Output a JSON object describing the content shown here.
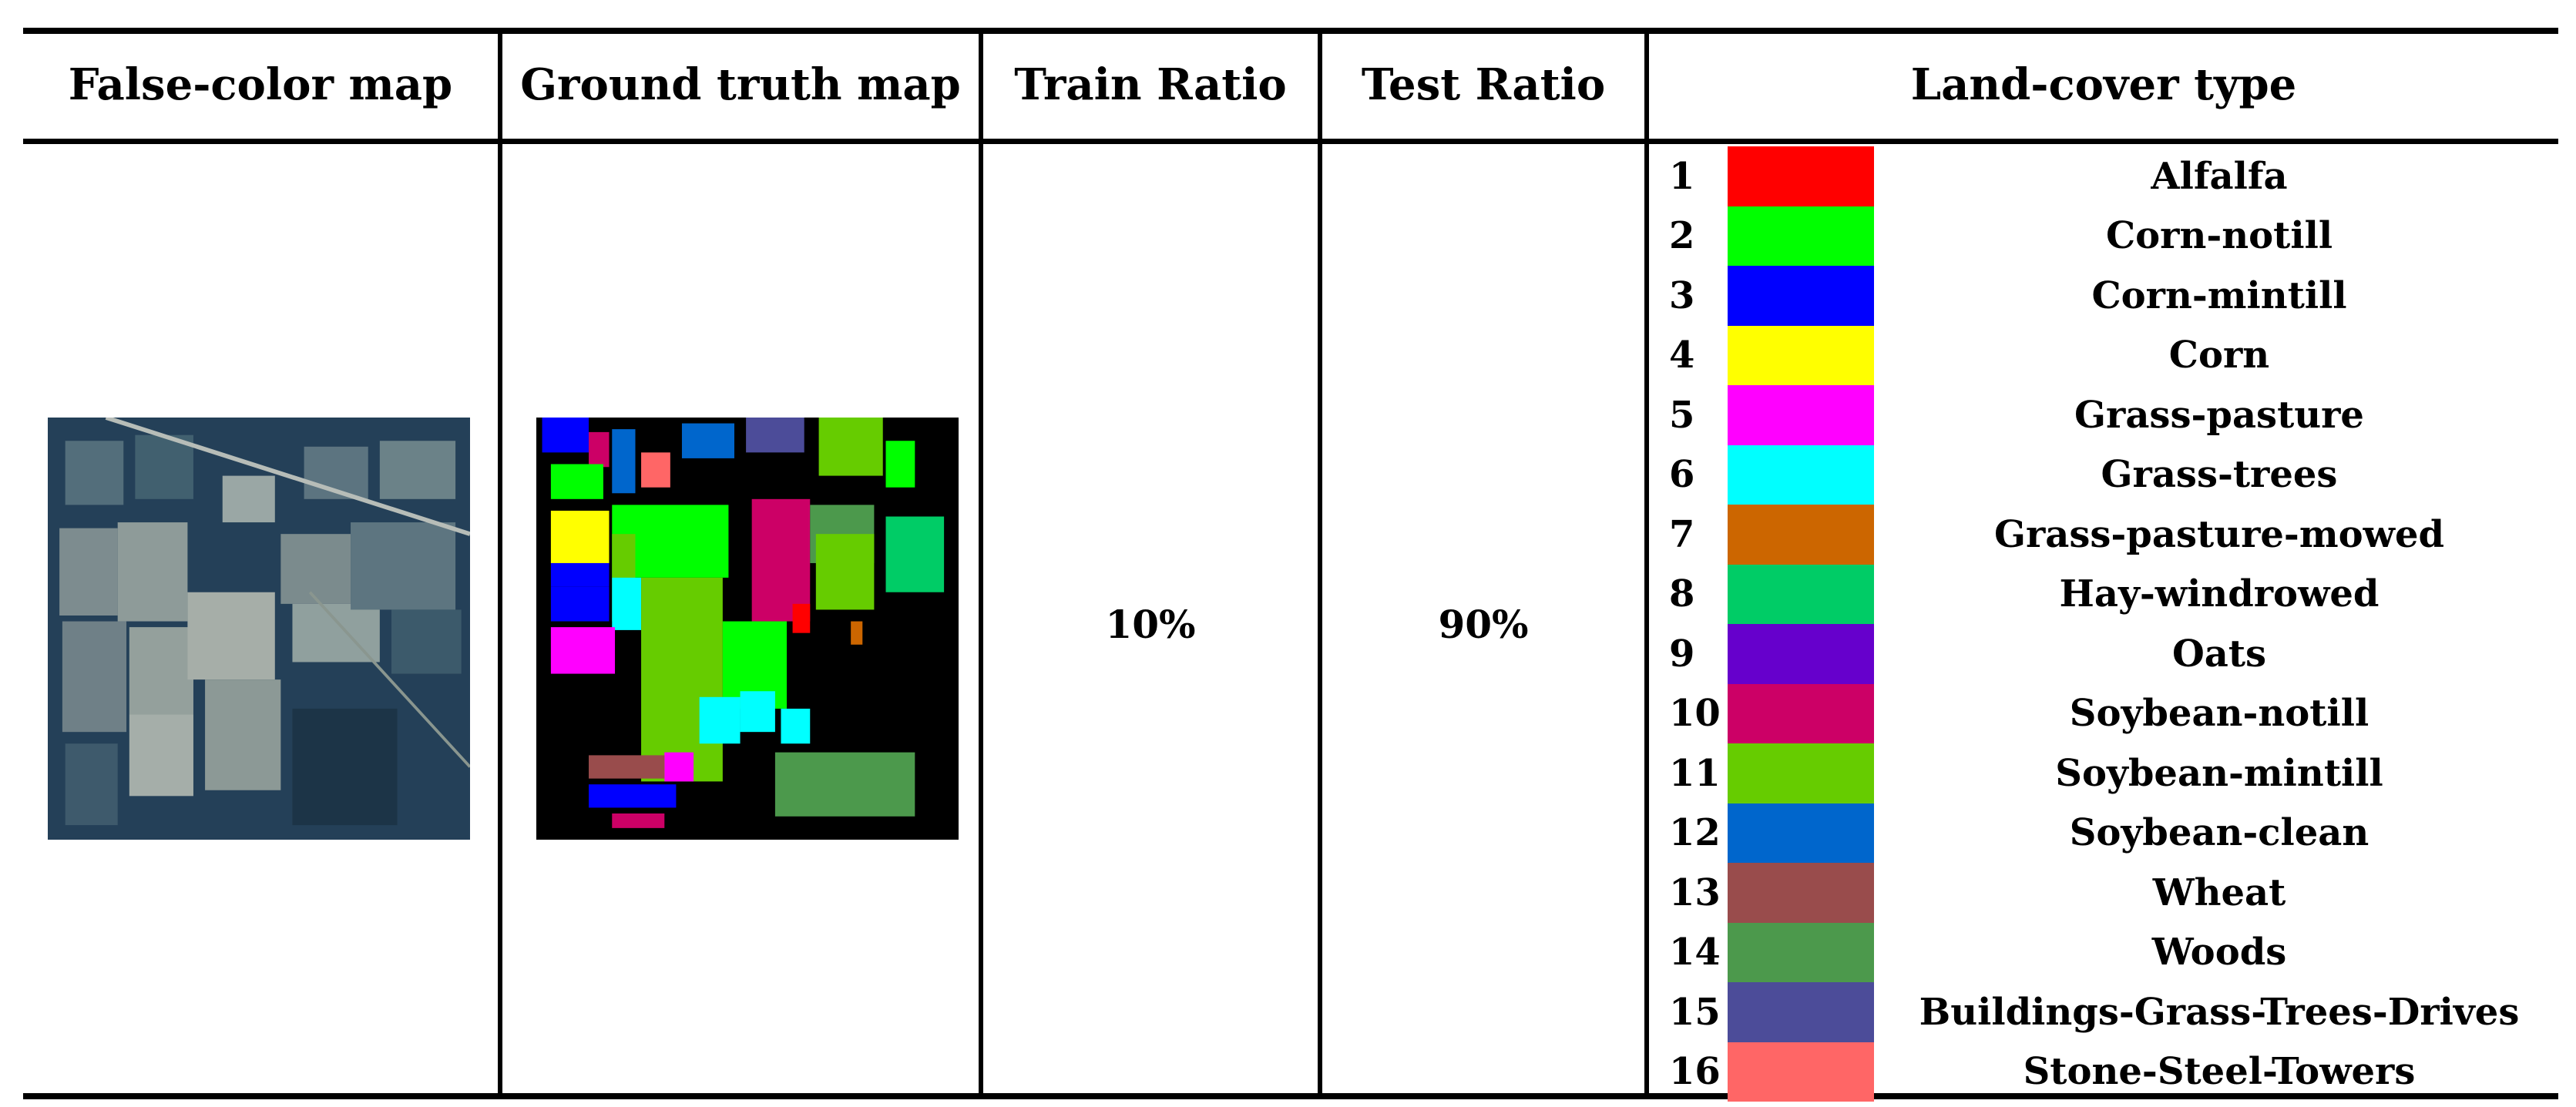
{
  "headers": {
    "false_color": "False-color map",
    "ground_truth": "Ground truth map",
    "train_ratio": "Train Ratio",
    "test_ratio": "Test Ratio",
    "land_cover": "Land-cover type"
  },
  "values": {
    "train_ratio": "10%",
    "test_ratio": "90%"
  },
  "legend": [
    {
      "num": "1",
      "label": "Alfalfa",
      "color": "#ff0000"
    },
    {
      "num": "2",
      "label": "Corn-notill",
      "color": "#00ff00"
    },
    {
      "num": "3",
      "label": "Corn-mintill",
      "color": "#0000ff"
    },
    {
      "num": "4",
      "label": "Corn",
      "color": "#ffff00"
    },
    {
      "num": "5",
      "label": "Grass-pasture",
      "color": "#ff00ff"
    },
    {
      "num": "6",
      "label": "Grass-trees",
      "color": "#00ffff"
    },
    {
      "num": "7",
      "label": "Grass-pasture-mowed",
      "color": "#cc6600"
    },
    {
      "num": "8",
      "label": "Hay-windrowed",
      "color": "#00cc66"
    },
    {
      "num": "9",
      "label": "Oats",
      "color": "#6600cc"
    },
    {
      "num": "10",
      "label": "Soybean-notill",
      "color": "#cc0066"
    },
    {
      "num": "11",
      "label": "Soybean-mintill",
      "color": "#66cc00"
    },
    {
      "num": "12",
      "label": "Soybean-clean",
      "color": "#0066cc"
    },
    {
      "num": "13",
      "label": "Wheat",
      "color": "#994c4c"
    },
    {
      "num": "14",
      "label": "Woods",
      "color": "#4c994c"
    },
    {
      "num": "15",
      "label": "Buildings-Grass-Trees-Drives",
      "color": "#4c4c99"
    },
    {
      "num": "16",
      "label": "Stone-Steel-Towers",
      "color": "#ff6666"
    }
  ]
}
